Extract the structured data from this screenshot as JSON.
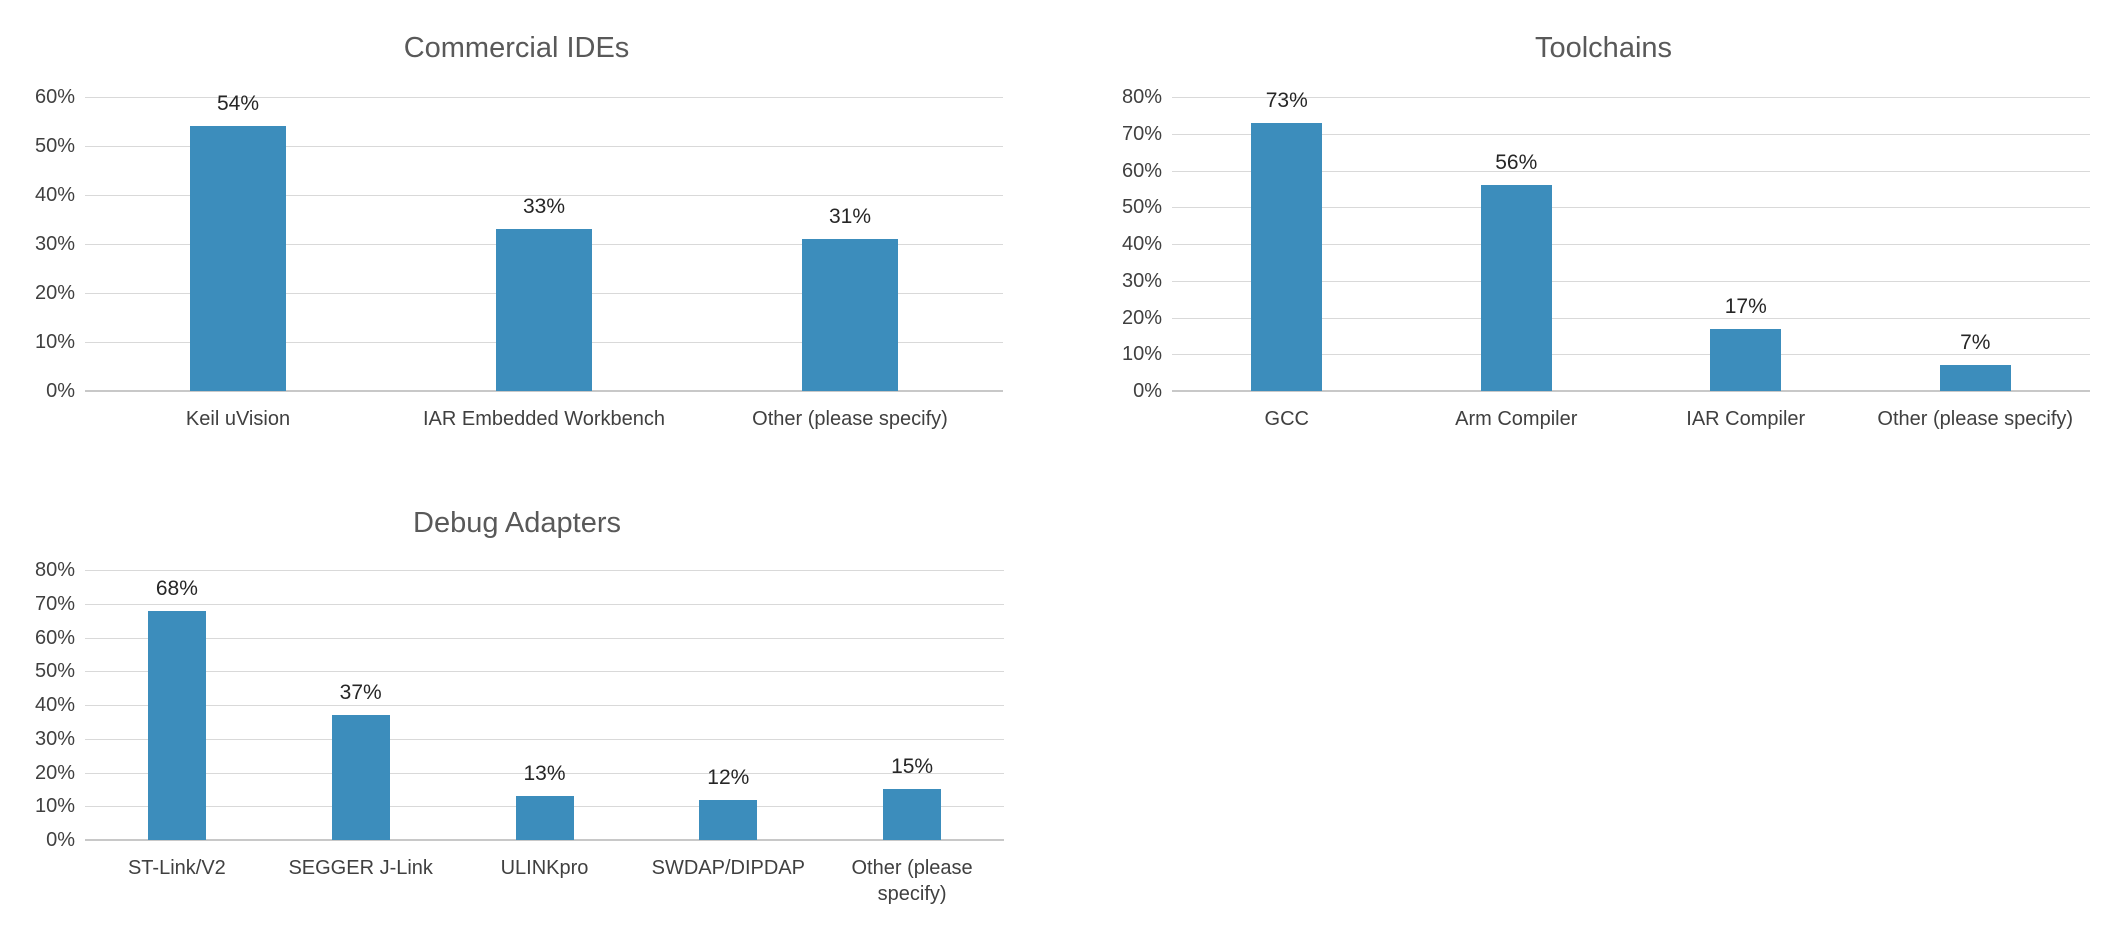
{
  "colors": {
    "bar": "#3C8DBC",
    "title_text": "#595959",
    "axis_text": "#404040",
    "data_label_text": "#262626",
    "gridline": "#D9D9D9",
    "axis_line": "#C8C8C8",
    "background": "#FFFFFF"
  },
  "chart_data": [
    {
      "type": "bar",
      "title": "Commercial IDEs",
      "categories": [
        "Keil uVision",
        "IAR Embedded Workbench",
        "Other (please specify)"
      ],
      "values": [
        54,
        33,
        31
      ],
      "data_labels": [
        "54%",
        "33%",
        "31%"
      ],
      "ylim": [
        0,
        60
      ],
      "ytick_step": 10,
      "ytick_labels": [
        "0%",
        "10%",
        "20%",
        "30%",
        "40%",
        "50%",
        "60%"
      ],
      "xlabel": "",
      "ylabel": "",
      "grid": true,
      "legend": false
    },
    {
      "type": "bar",
      "title": "Toolchains",
      "categories": [
        "GCC",
        "Arm Compiler",
        "IAR Compiler",
        "Other (please specify)"
      ],
      "values": [
        73,
        56,
        17,
        7
      ],
      "data_labels": [
        "73%",
        "56%",
        "17%",
        "7%"
      ],
      "ylim": [
        0,
        80
      ],
      "ytick_step": 10,
      "ytick_labels": [
        "0%",
        "10%",
        "20%",
        "30%",
        "40%",
        "50%",
        "60%",
        "70%",
        "80%"
      ],
      "xlabel": "",
      "ylabel": "",
      "grid": true,
      "legend": false
    },
    {
      "type": "bar",
      "title": "Debug Adapters",
      "categories": [
        "ST-Link/V2",
        "SEGGER J-Link",
        "ULINKpro",
        "SWDAP/DIPDAP",
        "Other (please specify)"
      ],
      "values": [
        68,
        37,
        13,
        12,
        15
      ],
      "data_labels": [
        "68%",
        "37%",
        "13%",
        "12%",
        "15%"
      ],
      "ylim": [
        0,
        80
      ],
      "ytick_step": 10,
      "ytick_labels": [
        "0%",
        "10%",
        "20%",
        "30%",
        "40%",
        "50%",
        "60%",
        "70%",
        "80%"
      ],
      "xlabel": "",
      "ylabel": "",
      "grid": true,
      "legend": false
    }
  ]
}
